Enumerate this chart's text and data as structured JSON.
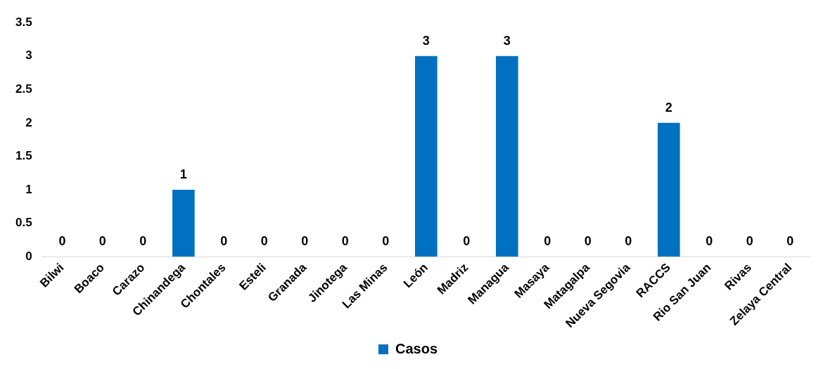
{
  "chart_data": {
    "type": "bar",
    "categories": [
      "Bilwi",
      "Boaco",
      "Carazo",
      "Chinandega",
      "Chontales",
      "Esteli",
      "Granada",
      "Jinotega",
      "Las Minas",
      "León",
      "Madriz",
      "Managua",
      "Masaya",
      "Matagalpa",
      "Nueva Segovia",
      "RACCS",
      "Rio San Juan",
      "Rivas",
      "Zelaya Central"
    ],
    "series": [
      {
        "name": "Casos",
        "color": "#0070c0",
        "values": [
          0,
          0,
          0,
          1,
          0,
          0,
          0,
          0,
          0,
          3,
          0,
          3,
          0,
          0,
          0,
          2,
          0,
          0,
          0
        ]
      }
    ],
    "ylim": [
      0,
      3.5
    ],
    "yticks": [
      0,
      0.5,
      1,
      1.5,
      2,
      2.5,
      3,
      3.5
    ],
    "grid": false,
    "legend": "bottom",
    "data_labels": true
  }
}
